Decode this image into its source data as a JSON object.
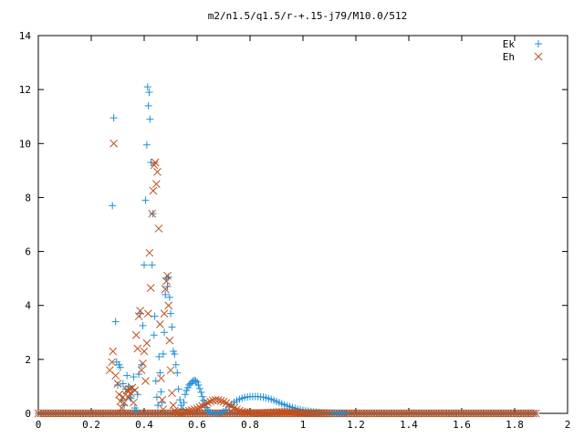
{
  "chart_data": {
    "type": "scatter",
    "title": "m2/n1.5/q1.5/r-+.15-j79/M10.0/512",
    "xlabel": "",
    "ylabel": "",
    "xlim": [
      0,
      2
    ],
    "ylim": [
      0,
      14
    ],
    "x_ticks": [
      "0",
      "0.2",
      "0.4",
      "0.6",
      "0.8",
      "1",
      "1.2",
      "1.4",
      "1.6",
      "1.8",
      "2"
    ],
    "y_ticks": [
      "0",
      "2",
      "4",
      "6",
      "8",
      "10",
      "12",
      "14"
    ],
    "legend_position": "top-right",
    "grid": false,
    "series": [
      {
        "name": "Ek",
        "marker": "plus",
        "color": "#1f8fd8",
        "points": [
          [
            0.28,
            7.7
          ],
          [
            0.285,
            10.95
          ],
          [
            0.292,
            3.4
          ],
          [
            0.296,
            1.9
          ],
          [
            0.3,
            1.05
          ],
          [
            0.305,
            1.8
          ],
          [
            0.31,
            1.7
          ],
          [
            0.315,
            0.5
          ],
          [
            0.32,
            1.1
          ],
          [
            0.325,
            0.3
          ],
          [
            0.33,
            0.9
          ],
          [
            0.335,
            1.4
          ],
          [
            0.34,
            1.0
          ],
          [
            0.345,
            0.6
          ],
          [
            0.35,
            0.55
          ],
          [
            0.355,
            0.9
          ],
          [
            0.36,
            1.35
          ],
          [
            0.365,
            0.2
          ],
          [
            0.37,
            0.1
          ],
          [
            0.375,
            0.7
          ],
          [
            0.38,
            1.45
          ],
          [
            0.385,
            3.7
          ],
          [
            0.39,
            1.8
          ],
          [
            0.395,
            3.25
          ],
          [
            0.4,
            5.5
          ],
          [
            0.405,
            7.9
          ],
          [
            0.41,
            9.95
          ],
          [
            0.413,
            12.1
          ],
          [
            0.416,
            11.4
          ],
          [
            0.419,
            11.9
          ],
          [
            0.422,
            10.9
          ],
          [
            0.426,
            9.3
          ],
          [
            0.43,
            5.5
          ],
          [
            0.433,
            7.4
          ],
          [
            0.437,
            2.9
          ],
          [
            0.44,
            3.6
          ],
          [
            0.444,
            1.2
          ],
          [
            0.448,
            0.6
          ],
          [
            0.452,
            0.3
          ],
          [
            0.456,
            2.1
          ],
          [
            0.46,
            1.5
          ],
          [
            0.464,
            0.8
          ],
          [
            0.468,
            0.4
          ],
          [
            0.472,
            2.2
          ],
          [
            0.476,
            3.0
          ],
          [
            0.48,
            4.4
          ],
          [
            0.484,
            5.0
          ],
          [
            0.488,
            4.7
          ],
          [
            0.492,
            5.05
          ],
          [
            0.496,
            4.3
          ],
          [
            0.5,
            3.7
          ],
          [
            0.505,
            3.2
          ],
          [
            0.51,
            2.3
          ],
          [
            0.515,
            2.2
          ],
          [
            0.52,
            1.8
          ],
          [
            0.525,
            1.5
          ],
          [
            0.53,
            0.9
          ],
          [
            0.535,
            0.5
          ],
          [
            0.54,
            0.3
          ],
          [
            0.545,
            0.15
          ],
          [
            0.55,
            0.4
          ],
          [
            0.555,
            0.7
          ],
          [
            0.56,
            0.85
          ],
          [
            0.565,
            0.95
          ],
          [
            0.57,
            1.05
          ],
          [
            0.575,
            1.1
          ],
          [
            0.58,
            1.15
          ],
          [
            0.585,
            1.2
          ],
          [
            0.59,
            1.22
          ],
          [
            0.595,
            1.2
          ],
          [
            0.6,
            1.15
          ],
          [
            0.605,
            1.05
          ],
          [
            0.61,
            0.92
          ],
          [
            0.615,
            0.78
          ],
          [
            0.62,
            0.62
          ],
          [
            0.625,
            0.48
          ],
          [
            0.63,
            0.35
          ],
          [
            0.635,
            0.22
          ],
          [
            0.64,
            0.12
          ],
          [
            0.645,
            0.06
          ],
          [
            0.65,
            0.03
          ],
          [
            0.66,
            0.01
          ],
          [
            0.67,
            0.0
          ],
          [
            0.68,
            0.0
          ],
          [
            0.69,
            0.02
          ],
          [
            0.7,
            0.06
          ],
          [
            0.71,
            0.14
          ],
          [
            0.72,
            0.24
          ],
          [
            0.73,
            0.33
          ],
          [
            0.74,
            0.41
          ],
          [
            0.75,
            0.47
          ],
          [
            0.76,
            0.52
          ],
          [
            0.77,
            0.56
          ],
          [
            0.78,
            0.59
          ],
          [
            0.79,
            0.61
          ],
          [
            0.8,
            0.62
          ],
          [
            0.81,
            0.625
          ],
          [
            0.82,
            0.625
          ],
          [
            0.83,
            0.62
          ],
          [
            0.84,
            0.61
          ],
          [
            0.85,
            0.6
          ],
          [
            0.86,
            0.58
          ],
          [
            0.87,
            0.55
          ],
          [
            0.88,
            0.52
          ],
          [
            0.89,
            0.48
          ],
          [
            0.9,
            0.44
          ],
          [
            0.91,
            0.4
          ],
          [
            0.92,
            0.36
          ],
          [
            0.93,
            0.32
          ],
          [
            0.94,
            0.28
          ],
          [
            0.95,
            0.25
          ],
          [
            0.96,
            0.22
          ],
          [
            0.97,
            0.19
          ],
          [
            0.98,
            0.16
          ],
          [
            0.99,
            0.14
          ],
          [
            1.0,
            0.12
          ],
          [
            1.01,
            0.1
          ],
          [
            1.02,
            0.085
          ],
          [
            1.03,
            0.07
          ],
          [
            1.04,
            0.06
          ],
          [
            1.05,
            0.05
          ],
          [
            1.06,
            0.04
          ],
          [
            1.07,
            0.032
          ],
          [
            1.08,
            0.025
          ],
          [
            1.09,
            0.02
          ],
          [
            1.1,
            0.016
          ],
          [
            1.11,
            0.012
          ],
          [
            1.12,
            0.009
          ],
          [
            1.13,
            0.007
          ],
          [
            1.14,
            0.005
          ],
          [
            1.15,
            0.004
          ],
          [
            1.16,
            0.003
          ]
        ]
      },
      {
        "name": "Eh",
        "marker": "cross",
        "color": "#c0501e",
        "points": [
          [
            0.27,
            1.6
          ],
          [
            0.278,
            1.9
          ],
          [
            0.282,
            2.3
          ],
          [
            0.285,
            10.0
          ],
          [
            0.292,
            1.4
          ],
          [
            0.3,
            1.1
          ],
          [
            0.305,
            0.7
          ],
          [
            0.31,
            0.45
          ],
          [
            0.315,
            0.2
          ],
          [
            0.32,
            0.6
          ],
          [
            0.325,
            0.4
          ],
          [
            0.33,
            0.7
          ],
          [
            0.335,
            0.85
          ],
          [
            0.34,
            0.6
          ],
          [
            0.345,
            0.9
          ],
          [
            0.35,
            0.75
          ],
          [
            0.355,
            0.95
          ],
          [
            0.36,
            0.4
          ],
          [
            0.365,
            0.85
          ],
          [
            0.37,
            2.9
          ],
          [
            0.375,
            2.4
          ],
          [
            0.38,
            3.6
          ],
          [
            0.385,
            3.8
          ],
          [
            0.39,
            1.6
          ],
          [
            0.395,
            1.85
          ],
          [
            0.4,
            2.3
          ],
          [
            0.405,
            1.2
          ],
          [
            0.41,
            2.6
          ],
          [
            0.415,
            3.7
          ],
          [
            0.42,
            5.95
          ],
          [
            0.425,
            4.65
          ],
          [
            0.43,
            7.4
          ],
          [
            0.434,
            8.25
          ],
          [
            0.438,
            9.2
          ],
          [
            0.442,
            9.3
          ],
          [
            0.446,
            8.5
          ],
          [
            0.45,
            8.95
          ],
          [
            0.455,
            6.85
          ],
          [
            0.46,
            3.3
          ],
          [
            0.464,
            1.3
          ],
          [
            0.468,
            0.5
          ],
          [
            0.472,
            0.15
          ],
          [
            0.476,
            3.7
          ],
          [
            0.48,
            4.6
          ],
          [
            0.484,
            4.9
          ],
          [
            0.488,
            5.1
          ],
          [
            0.492,
            4.0
          ],
          [
            0.496,
            2.7
          ],
          [
            0.5,
            1.6
          ],
          [
            0.505,
            0.75
          ],
          [
            0.51,
            0.3
          ],
          [
            0.515,
            0.1
          ],
          [
            0.52,
            0.05
          ],
          [
            0.53,
            0.02
          ],
          [
            0.54,
            0.03
          ],
          [
            0.55,
            0.05
          ],
          [
            0.56,
            0.08
          ],
          [
            0.57,
            0.1
          ],
          [
            0.58,
            0.12
          ],
          [
            0.59,
            0.15
          ],
          [
            0.6,
            0.18
          ],
          [
            0.61,
            0.22
          ],
          [
            0.62,
            0.27
          ],
          [
            0.63,
            0.33
          ],
          [
            0.64,
            0.39
          ],
          [
            0.65,
            0.44
          ],
          [
            0.66,
            0.48
          ],
          [
            0.67,
            0.5
          ],
          [
            0.68,
            0.49
          ],
          [
            0.69,
            0.46
          ],
          [
            0.7,
            0.43
          ],
          [
            0.71,
            0.38
          ],
          [
            0.72,
            0.32
          ],
          [
            0.73,
            0.26
          ],
          [
            0.74,
            0.2
          ],
          [
            0.75,
            0.15
          ],
          [
            0.76,
            0.1
          ],
          [
            0.77,
            0.07
          ],
          [
            0.78,
            0.045
          ],
          [
            0.79,
            0.03
          ],
          [
            0.8,
            0.02
          ],
          [
            0.81,
            0.015
          ],
          [
            0.82,
            0.01
          ],
          [
            0.83,
            0.01
          ],
          [
            0.84,
            0.015
          ],
          [
            0.85,
            0.02
          ],
          [
            0.86,
            0.025
          ],
          [
            0.87,
            0.03
          ],
          [
            0.88,
            0.035
          ],
          [
            0.89,
            0.04
          ],
          [
            0.9,
            0.045
          ],
          [
            0.91,
            0.05
          ],
          [
            0.92,
            0.05
          ],
          [
            0.93,
            0.05
          ],
          [
            0.94,
            0.048
          ],
          [
            0.95,
            0.045
          ],
          [
            0.96,
            0.04
          ],
          [
            0.97,
            0.035
          ],
          [
            0.98,
            0.03
          ],
          [
            0.99,
            0.025
          ],
          [
            1.0,
            0.02
          ],
          [
            1.01,
            0.016
          ],
          [
            1.02,
            0.013
          ],
          [
            1.03,
            0.01
          ],
          [
            1.04,
            0.008
          ],
          [
            1.05,
            0.006
          ],
          [
            1.06,
            0.005
          ],
          [
            1.07,
            0.004
          ],
          [
            1.08,
            0.003
          ],
          [
            1.09,
            0.002
          ],
          [
            1.1,
            0.002
          ]
        ]
      }
    ],
    "baseline": {
      "x_start": 0.0,
      "x_end": 1.88,
      "y": 0.0
    }
  }
}
